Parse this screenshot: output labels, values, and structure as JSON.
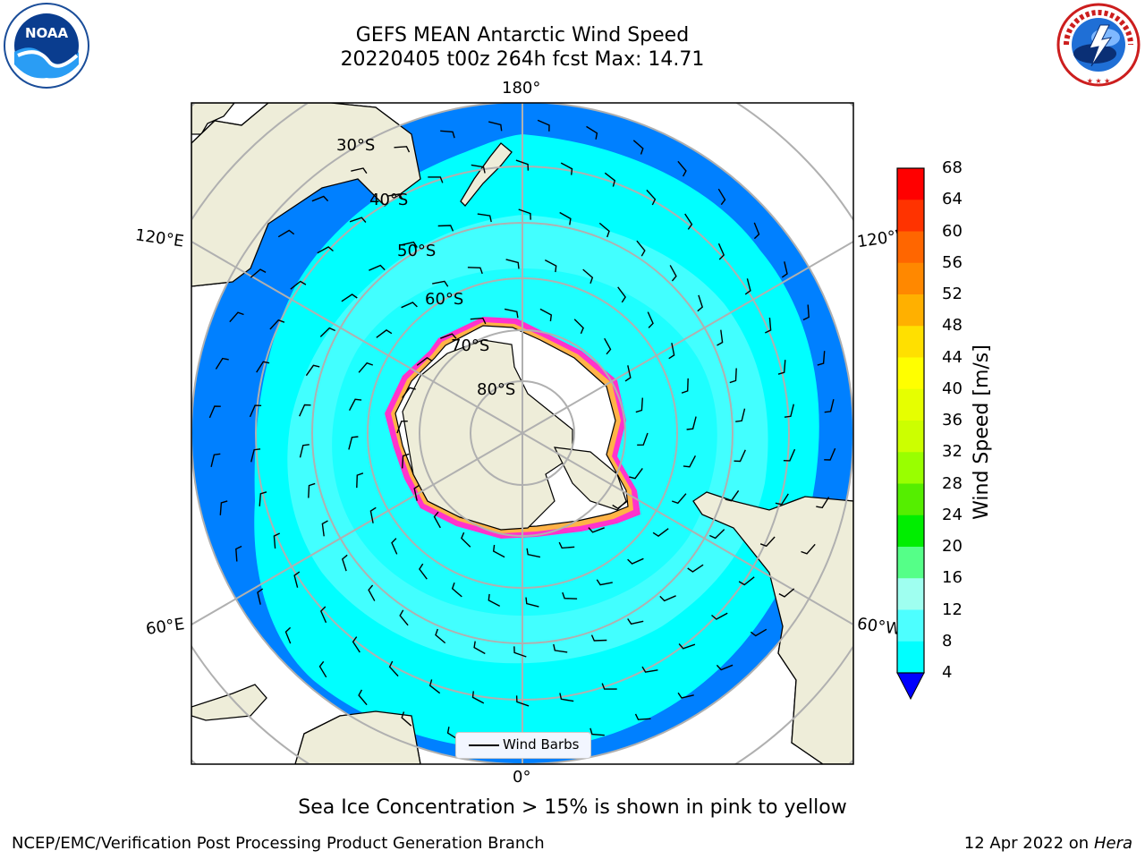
{
  "header": {
    "title_line1": "GEFS MEAN Antarctic Wind Speed",
    "title_line2": "20220405 t00z 264h fcst   Max: 14.71"
  },
  "map": {
    "longitude_labels": [
      "180°",
      "120°E",
      "120°W",
      "60°E",
      "60°W",
      "0°"
    ],
    "latitude_labels": [
      "30°S",
      "40°S",
      "50°S",
      "60°S",
      "70°S",
      "80°S"
    ],
    "legend_label": "Wind Barbs",
    "colors": {
      "land": "#eeedd9",
      "ice_sheet": "#ffffff",
      "ocean_4_8": "#0080ff",
      "ocean_8_12": "#00ffff",
      "ocean_12_16": "#4dffff",
      "sea_ice_edge": "#ff33cc",
      "sea_ice_inner": "#ffb347",
      "gridline": "#b0b0b0"
    }
  },
  "colorbar": {
    "label": "Wind Speed [m/s]",
    "ticks": [
      "68",
      "64",
      "60",
      "56",
      "52",
      "48",
      "44",
      "40",
      "36",
      "32",
      "28",
      "24",
      "20",
      "16",
      "12",
      "8",
      "4"
    ],
    "colors": [
      "#ff0000",
      "#ff3300",
      "#ff6600",
      "#ff8800",
      "#ffb000",
      "#ffe000",
      "#ffff00",
      "#e6ff00",
      "#ccff00",
      "#99ff00",
      "#55ee00",
      "#00ee00",
      "#55ff88",
      "#9ffff0",
      "#4dffff",
      "#00ffff",
      "#0080ff"
    ],
    "extend_color": "#0000ff"
  },
  "note": "Sea Ice Concentration > 15% is shown in pink to yellow",
  "footer": {
    "left": "NCEP/EMC/Verification Post Processing Product Generation Branch",
    "right_date": "12 Apr 2022 on",
    "right_host": "Hera"
  },
  "logos": {
    "left": "NOAA",
    "right": "NATIONAL WEATHER SERVICE",
    "left_ring_text": "NATIONAL OCEANIC AND ATMOSPHERIC ADMINISTRATION · U.S. DEPARTMENT OF COMMERCE"
  }
}
